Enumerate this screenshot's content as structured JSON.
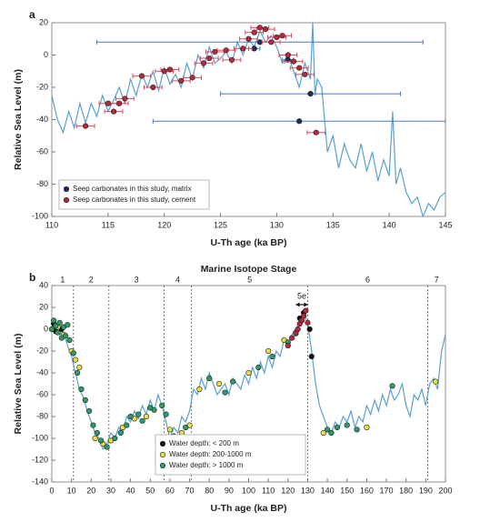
{
  "chart_data": [
    {
      "type": "line",
      "panel_label": "a",
      "xlabel": "U-Th age (ka BP)",
      "ylabel": "Relative Sea Level (m)",
      "xlim": [
        110,
        145
      ],
      "xticks": [
        110,
        115,
        120,
        125,
        130,
        135,
        140,
        145
      ],
      "ylim": [
        -100,
        20
      ],
      "yticks": [
        -100,
        -80,
        -60,
        -40,
        -20,
        0,
        20
      ],
      "legend": "lower left",
      "series": [
        {
          "type": "line",
          "color": "#5aa0d0",
          "x": [
            110,
            110.5,
            111,
            111.5,
            112,
            112.5,
            113,
            113.5,
            114,
            114.5,
            115,
            115.5,
            116,
            116.5,
            117,
            117.5,
            118,
            118.5,
            119,
            119.5,
            120,
            120.5,
            121,
            121.5,
            122,
            122.5,
            123,
            123.5,
            124,
            124.5,
            125,
            125.5,
            126,
            126.5,
            127,
            127.5,
            128,
            128.5,
            129,
            129.5,
            130,
            130.5,
            131,
            131.5,
            132,
            132.5,
            133,
            133.2,
            133.4,
            133.6,
            134,
            134.5,
            135,
            135.5,
            136,
            136.5,
            137,
            137.5,
            138,
            138.5,
            139,
            139.5,
            140,
            140.3,
            140.6,
            141,
            141.5,
            142,
            142.5,
            143,
            143.5,
            144,
            144.5,
            145
          ],
          "values": [
            -25,
            -40,
            -48,
            -35,
            -45,
            -30,
            -42,
            -30,
            -38,
            -25,
            -35,
            -28,
            -20,
            -30,
            -15,
            -25,
            -12,
            -20,
            -10,
            -22,
            -8,
            -18,
            -12,
            -20,
            -5,
            -15,
            0,
            -8,
            5,
            -5,
            -2,
            2,
            -5,
            8,
            0,
            10,
            5,
            15,
            8,
            12,
            5,
            -5,
            0,
            -10,
            -20,
            -5,
            -15,
            20,
            -25,
            -15,
            -20,
            -60,
            -50,
            -70,
            -55,
            -65,
            -70,
            -55,
            -72,
            -60,
            -78,
            -65,
            -75,
            -35,
            -80,
            -70,
            -85,
            -92,
            -88,
            -100,
            -92,
            -96,
            -88,
            -85
          ]
        },
        {
          "type": "scatter",
          "name": "Seep carbonates in this study, matrix",
          "color": "#1f2d5a",
          "errcolor": "#4a78b8",
          "x": [
            128.5,
            133,
            132,
            131,
            128
          ],
          "values": [
            8,
            -24,
            -41,
            -3,
            4
          ],
          "xerr": [
            14.5,
            8,
            13,
            0.5,
            0.5
          ]
        },
        {
          "type": "scatter",
          "name": "Seep carbonates in this study, cement",
          "color": "#b8283a",
          "errcolor": "#e04a5a",
          "x": [
            113,
            115,
            115.5,
            116,
            116.5,
            118,
            119,
            120,
            120.5,
            121.5,
            122.5,
            123.5,
            124,
            124.5,
            125.5,
            126,
            127,
            127.5,
            128,
            128.5,
            129,
            129.5,
            130,
            130.5,
            131,
            131.5,
            132,
            132.5,
            133.5
          ],
          "values": [
            -44,
            -30,
            -35,
            -30,
            -27,
            -13,
            -20,
            -10,
            -9,
            -16,
            -14,
            -5,
            -2,
            2,
            3,
            -3,
            4,
            10,
            14,
            17,
            16,
            8,
            11,
            12,
            0,
            -4,
            -8,
            -12,
            -48
          ],
          "xerr": [
            0.8,
            0.8,
            0.8,
            0.8,
            0.8,
            0.8,
            0.8,
            0.8,
            0.8,
            0.8,
            0.8,
            0.8,
            0.8,
            0.8,
            0.8,
            0.8,
            0.8,
            0.8,
            0.8,
            0.8,
            0.8,
            0.8,
            0.8,
            0.8,
            0.8,
            0.8,
            0.8,
            0.8,
            0.8
          ]
        }
      ]
    },
    {
      "type": "line",
      "panel_label": "b",
      "title": "Marine Isotope Stage",
      "xlabel": "U-Th age (ka BP)",
      "ylabel": "Relative Sea Level (m)",
      "xlim": [
        0,
        200
      ],
      "xticks": [
        0,
        10,
        20,
        30,
        40,
        50,
        60,
        70,
        80,
        90,
        100,
        110,
        120,
        130,
        140,
        150,
        160,
        170,
        180,
        190,
        200
      ],
      "ylim": [
        -140,
        40
      ],
      "yticks": [
        -140,
        -120,
        -100,
        -80,
        -60,
        -40,
        -20,
        0,
        20,
        40
      ],
      "legend": "lower center",
      "mis_boundaries": [
        11,
        29,
        57,
        71,
        130,
        191
      ],
      "stage_labels": [
        "1",
        "2",
        "3",
        "4",
        "5",
        "6",
        "7"
      ],
      "annotation": {
        "text": "5e",
        "x": [
          124,
          130
        ]
      },
      "series": [
        {
          "type": "line",
          "color": "#5aa0d0",
          "x": [
            0,
            2,
            4,
            6,
            8,
            10,
            12,
            14,
            16,
            18,
            20,
            22,
            24,
            26,
            28,
            30,
            32,
            34,
            36,
            38,
            40,
            42,
            44,
            46,
            48,
            50,
            52,
            54,
            56,
            58,
            60,
            62,
            64,
            66,
            68,
            70,
            72,
            74,
            76,
            78,
            80,
            82,
            84,
            86,
            88,
            90,
            92,
            94,
            96,
            98,
            100,
            102,
            104,
            106,
            108,
            110,
            112,
            114,
            116,
            118,
            120,
            122,
            124,
            126,
            128,
            130,
            132,
            134,
            136,
            138,
            140,
            142,
            144,
            146,
            148,
            150,
            152,
            154,
            156,
            158,
            160,
            162,
            164,
            166,
            168,
            170,
            172,
            174,
            176,
            178,
            180,
            182,
            184,
            186,
            188,
            190,
            192,
            194,
            196,
            198,
            200
          ],
          "values": [
            5,
            0,
            -5,
            -3,
            -15,
            -25,
            -40,
            -55,
            -62,
            -75,
            -85,
            -95,
            -100,
            -110,
            -105,
            -95,
            -100,
            -90,
            -95,
            -80,
            -85,
            -75,
            -82,
            -70,
            -78,
            -65,
            -75,
            -60,
            -70,
            -85,
            -100,
            -90,
            -95,
            -80,
            -85,
            -75,
            -55,
            -60,
            -45,
            -55,
            -40,
            -50,
            -60,
            -55,
            -50,
            -60,
            -45,
            -50,
            -55,
            -42,
            -50,
            -35,
            -45,
            -30,
            -40,
            -25,
            -35,
            -20,
            -25,
            -10,
            -15,
            -5,
            0,
            8,
            15,
            5,
            -20,
            -50,
            -70,
            -80,
            -90,
            -95,
            -85,
            -90,
            -80,
            -85,
            -75,
            -90,
            -80,
            -85,
            -70,
            -78,
            -65,
            -75,
            -60,
            -70,
            -55,
            -65,
            -60,
            -50,
            -70,
            -80,
            -60,
            -65,
            -55,
            -70,
            -50,
            -45,
            -55,
            -20,
            -5
          ]
        },
        {
          "type": "scatter",
          "name": "Water depth: < 200 m",
          "color": "#111111",
          "x": [
            1,
            2,
            5,
            128,
            126,
            131,
            132
          ],
          "values": [
            5,
            -2,
            0,
            15,
            10,
            0,
            -25
          ]
        },
        {
          "type": "scatter",
          "name": "Water depth: 200-1000 m",
          "color": "#e8e040",
          "x": [
            3,
            6,
            10,
            12,
            14,
            22,
            26,
            30,
            36,
            42,
            48,
            60,
            64,
            66,
            70,
            75,
            85,
            100,
            110,
            118,
            138,
            160,
            195
          ],
          "values": [
            2,
            -5,
            -20,
            -28,
            -35,
            -100,
            -105,
            -102,
            -90,
            -82,
            -80,
            -92,
            -100,
            -95,
            -88,
            -55,
            -50,
            -40,
            -20,
            -10,
            -95,
            -90,
            -48
          ]
        },
        {
          "type": "scatter",
          "name": "Water depth: > 1000 m",
          "color": "#2e9a6a",
          "x": [
            0,
            1,
            2,
            3,
            4,
            5,
            6,
            7,
            8,
            9,
            11,
            13,
            15,
            17,
            19,
            21,
            23,
            25,
            28,
            32,
            35,
            38,
            40,
            44,
            46,
            50,
            52,
            56,
            58,
            62,
            68,
            80,
            88,
            92,
            105,
            112,
            120,
            124,
            140,
            142,
            145,
            150,
            155,
            173
          ],
          "values": [
            0,
            8,
            3,
            -3,
            6,
            -8,
            2,
            -6,
            4,
            -10,
            -22,
            -40,
            -55,
            -65,
            -75,
            -88,
            -95,
            -102,
            -108,
            -100,
            -95,
            -88,
            -80,
            -78,
            -84,
            -72,
            -74,
            -70,
            -78,
            -98,
            -90,
            -45,
            -58,
            -48,
            -35,
            -25,
            -12,
            -4,
            -92,
            -95,
            -90,
            -88,
            -92,
            -52
          ]
        },
        {
          "type": "scatter",
          "color": "#b8283a",
          "x": [
            120,
            122,
            124,
            125,
            126,
            127,
            128,
            129,
            130
          ],
          "values": [
            -15,
            -8,
            -3,
            0,
            5,
            8,
            12,
            17,
            6
          ]
        }
      ]
    }
  ]
}
